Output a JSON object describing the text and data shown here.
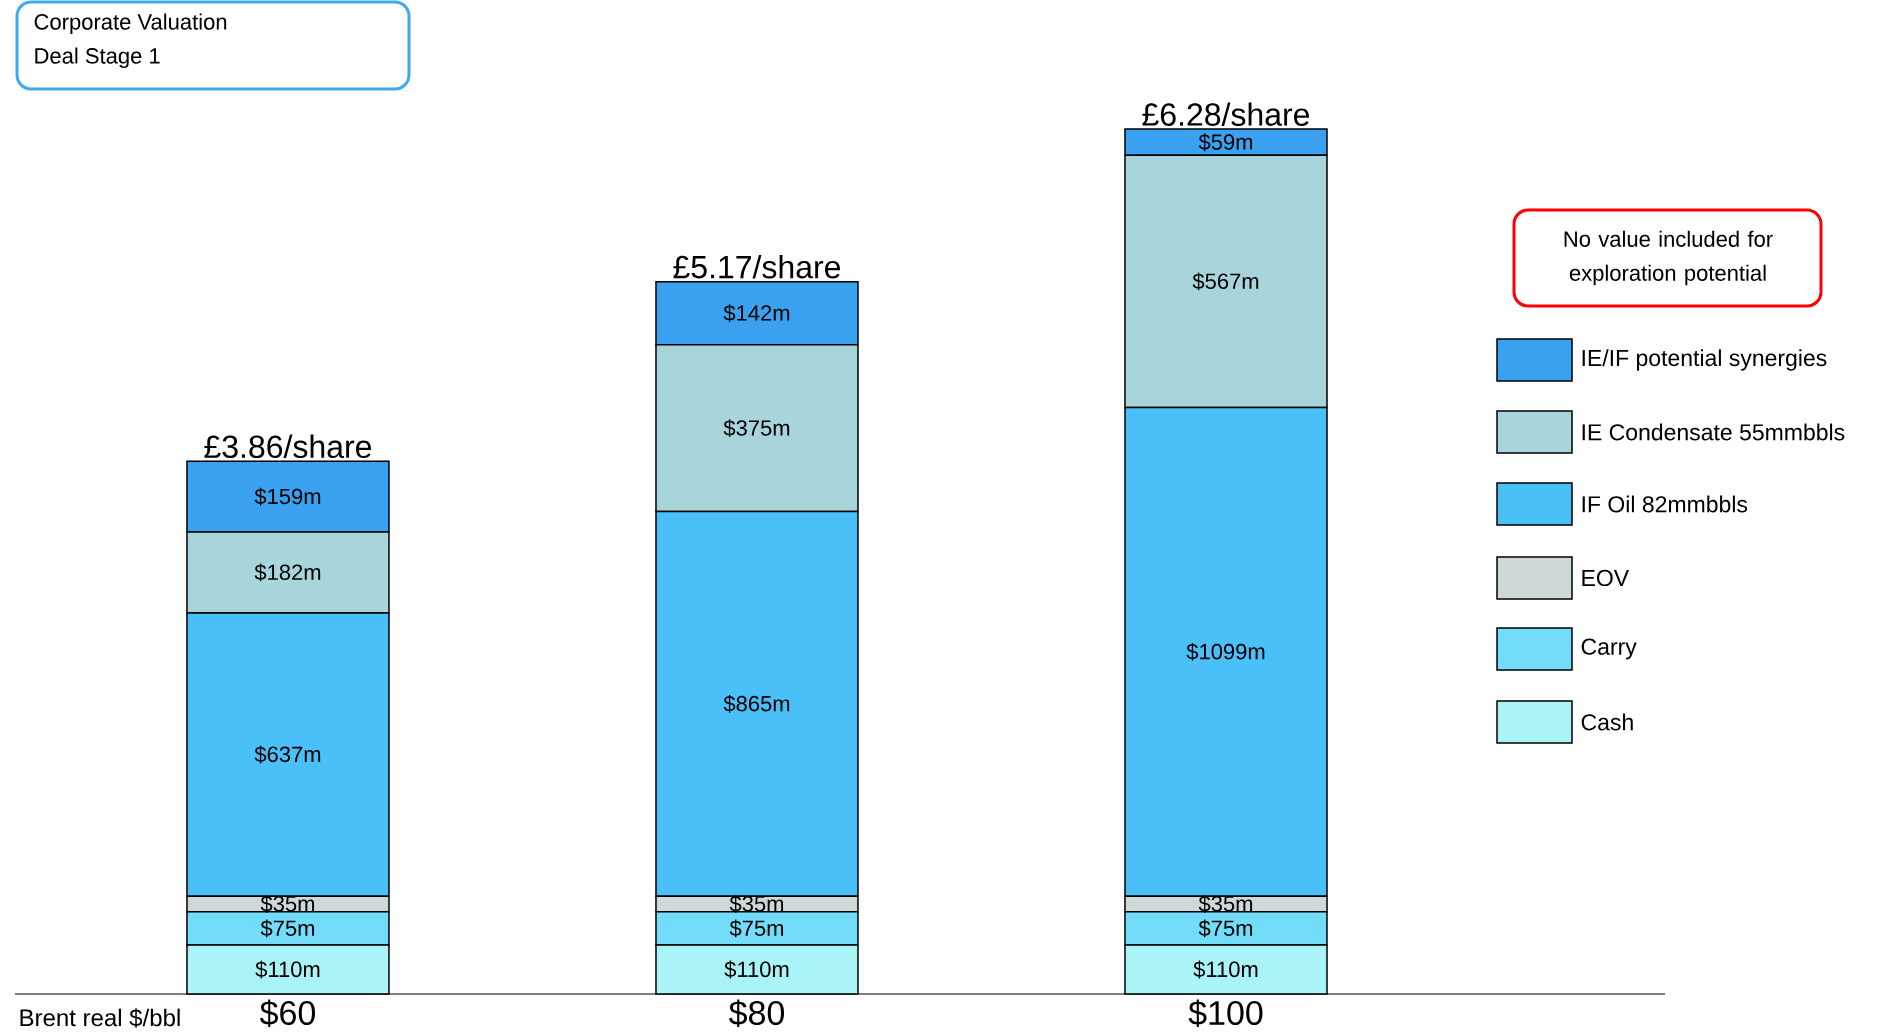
{
  "chart_data": {
    "type": "bar",
    "title": "Corporate Valuation",
    "subtitle": "Deal Stage 1",
    "xlabel": "Brent real $/bbl",
    "categories": [
      "$60",
      "$80",
      "$100"
    ],
    "stacked": true,
    "legend": "right",
    "series": [
      {
        "name": "Cash",
        "color": "#aaf4f8",
        "values": [
          110,
          110,
          110
        ],
        "value_labels": [
          "$110m",
          "$110m",
          "$110m"
        ]
      },
      {
        "name": "Carry",
        "color": "#73dcf8",
        "values": [
          75,
          75,
          75
        ],
        "value_labels": [
          "$75m",
          "$75m",
          "$75m"
        ]
      },
      {
        "name": "EOV",
        "color": "#cfd8d8",
        "values": [
          35,
          35,
          35
        ],
        "value_labels": [
          "$35m",
          "$35m",
          "$35m"
        ]
      },
      {
        "name": "IF Oil 82mmbbls",
        "color": "#4bbff8",
        "values": [
          637,
          865,
          1099
        ],
        "value_labels": [
          "$637m",
          "$865m",
          "$1099m"
        ]
      },
      {
        "name": "IE Condensate 55mmbbls",
        "color": "#a8d4dc",
        "values": [
          182,
          375,
          567
        ],
        "value_labels": [
          "$182m",
          "$375m",
          "$567m"
        ]
      },
      {
        "name": "IE/IF potential synergies",
        "color": "#3aa0f0",
        "values": [
          159,
          142,
          59
        ],
        "value_labels": [
          "$159m",
          "$142m",
          "$59m"
        ]
      }
    ],
    "annotations": [
      {
        "text": "£3.86/share",
        "x": "$60",
        "y": 1198
      },
      {
        "text": "£5.17/share",
        "x": "$80",
        "y": 1602
      },
      {
        "text": "£6.28/share",
        "x": "$100",
        "y": 1945
      },
      "No value included for exploration potential"
    ]
  }
}
